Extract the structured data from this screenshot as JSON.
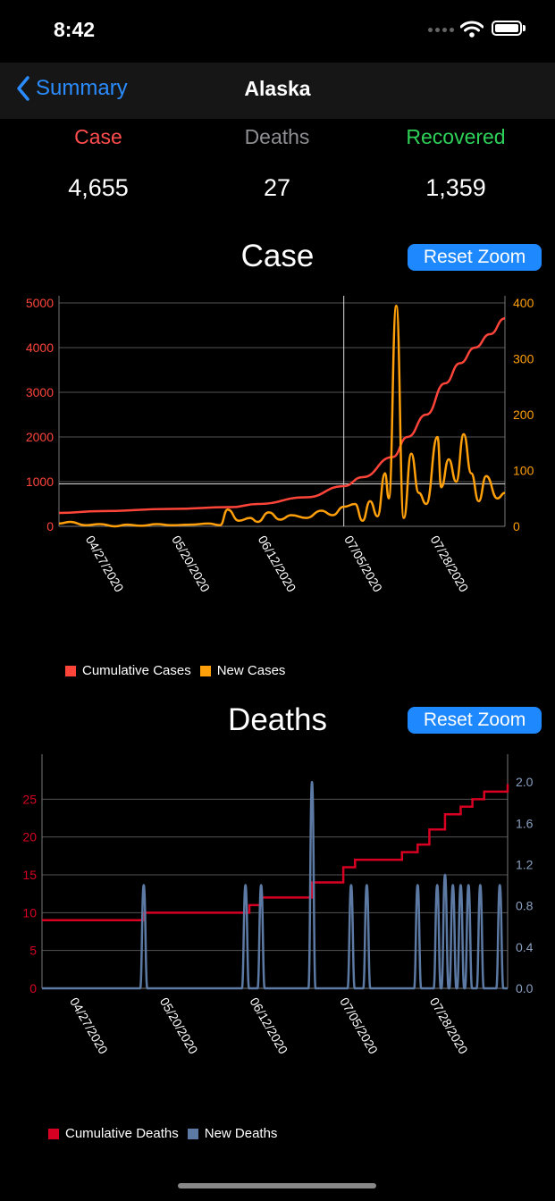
{
  "status_bar": {
    "time": "8:42"
  },
  "nav": {
    "back_label": "Summary",
    "title": "Alaska"
  },
  "stats": [
    {
      "label": "Case",
      "value": "4,655",
      "color": "#ff4d4d"
    },
    {
      "label": "Deaths",
      "value": "27",
      "color": "#8e8e93"
    },
    {
      "label": "Recovered",
      "value": "1,359",
      "color": "#2ed158"
    }
  ],
  "charts": [
    {
      "title": "Case",
      "reset_label": "Reset Zoom",
      "left_ticks": [
        "0",
        "1000",
        "2000",
        "3000",
        "4000",
        "5000"
      ],
      "right_ticks": [
        "0",
        "100",
        "200",
        "300",
        "400"
      ],
      "x_ticks": [
        "04/27/2020",
        "05/20/2020",
        "06/12/2020",
        "07/05/2020",
        "07/28/2020"
      ],
      "legend": [
        {
          "label": "Cumulative Cases",
          "color": "#ff453a"
        },
        {
          "label": "New Cases",
          "color": "#ff9f0a"
        }
      ]
    },
    {
      "title": "Deaths",
      "reset_label": "Reset Zoom",
      "left_ticks": [
        "0",
        "5",
        "10",
        "15",
        "20",
        "25"
      ],
      "right_ticks": [
        "0.0",
        "0.4",
        "0.8",
        "1.2",
        "1.6",
        "2.0"
      ],
      "x_ticks": [
        "04/27/2020",
        "05/20/2020",
        "06/12/2020",
        "07/05/2020",
        "07/28/2020"
      ],
      "legend": [
        {
          "label": "Cumulative Deaths",
          "color": "#d70022"
        },
        {
          "label": "New Deaths",
          "color": "#5c7aa3"
        }
      ]
    }
  ],
  "chart_data": [
    {
      "type": "line",
      "title": "Case",
      "x_range": [
        "04/20/2020",
        "08/17/2020"
      ],
      "series": [
        {
          "name": "Cumulative Cases",
          "axis": "left",
          "points": [
            [
              "04/20/2020",
              300
            ],
            [
              "05/01/2020",
              340
            ],
            [
              "05/20/2020",
              390
            ],
            [
              "06/05/2020",
              430
            ],
            [
              "06/12/2020",
              500
            ],
            [
              "06/25/2020",
              650
            ],
            [
              "07/05/2020",
              900
            ],
            [
              "07/10/2020",
              1100
            ],
            [
              "07/18/2020",
              1550
            ],
            [
              "07/22/2020",
              2000
            ],
            [
              "07/27/2020",
              2500
            ],
            [
              "08/01/2020",
              3200
            ],
            [
              "08/05/2020",
              3650
            ],
            [
              "08/09/2020",
              4000
            ],
            [
              "08/13/2020",
              4300
            ],
            [
              "08/17/2020",
              4655
            ]
          ]
        },
        {
          "name": "New Cases",
          "axis": "right",
          "points": [
            [
              "04/20/2020",
              5
            ],
            [
              "04/23/2020",
              8
            ],
            [
              "04/27/2020",
              2
            ],
            [
              "05/01/2020",
              4
            ],
            [
              "05/05/2020",
              0
            ],
            [
              "05/08/2020",
              3
            ],
            [
              "05/12/2020",
              1
            ],
            [
              "05/16/2020",
              4
            ],
            [
              "05/20/2020",
              2
            ],
            [
              "05/25/2020",
              3
            ],
            [
              "05/30/2020",
              5
            ],
            [
              "06/02/2020",
              2
            ],
            [
              "06/04/2020",
              30
            ],
            [
              "06/07/2020",
              10
            ],
            [
              "06/10/2020",
              15
            ],
            [
              "06/12/2020",
              8
            ],
            [
              "06/15/2020",
              25
            ],
            [
              "06/18/2020",
              12
            ],
            [
              "06/21/2020",
              20
            ],
            [
              "06/25/2020",
              15
            ],
            [
              "06/29/2020",
              28
            ],
            [
              "07/02/2020",
              20
            ],
            [
              "07/05/2020",
              35
            ],
            [
              "07/08/2020",
              40
            ],
            [
              "07/10/2020",
              10
            ],
            [
              "07/12/2020",
              45
            ],
            [
              "07/14/2020",
              18
            ],
            [
              "07/16/2020",
              95
            ],
            [
              "07/17/2020",
              50
            ],
            [
              "07/19/2020",
              395
            ],
            [
              "07/21/2020",
              15
            ],
            [
              "07/23/2020",
              130
            ],
            [
              "07/25/2020",
              60
            ],
            [
              "07/27/2020",
              40
            ],
            [
              "07/30/2020",
              160
            ],
            [
              "07/31/2020",
              70
            ],
            [
              "08/02/2020",
              120
            ],
            [
              "08/04/2020",
              80
            ],
            [
              "08/06/2020",
              165
            ],
            [
              "08/08/2020",
              95
            ],
            [
              "08/10/2020",
              45
            ],
            [
              "08/12/2020",
              90
            ],
            [
              "08/15/2020",
              50
            ],
            [
              "08/17/2020",
              60
            ]
          ]
        }
      ],
      "left_axis": {
        "min": 0,
        "max": 5000
      },
      "right_axis": {
        "min": 0,
        "max": 400
      },
      "grid": true,
      "legend_position": "bottom-left"
    },
    {
      "type": "line",
      "title": "Deaths",
      "x_range": [
        "04/20/2020",
        "08/17/2020"
      ],
      "series": [
        {
          "name": "Cumulative Deaths",
          "axis": "left",
          "points": [
            [
              "04/20/2020",
              9
            ],
            [
              "05/15/2020",
              9
            ],
            [
              "05/16/2020",
              10
            ],
            [
              "06/10/2020",
              10
            ],
            [
              "06/12/2020",
              11
            ],
            [
              "06/15/2020",
              12
            ],
            [
              "06/27/2020",
              12
            ],
            [
              "06/28/2020",
              14
            ],
            [
              "07/05/2020",
              14
            ],
            [
              "07/06/2020",
              16
            ],
            [
              "07/09/2020",
              17
            ],
            [
              "07/19/2020",
              17
            ],
            [
              "07/21/2020",
              18
            ],
            [
              "07/25/2020",
              19
            ],
            [
              "07/28/2020",
              21
            ],
            [
              "08/01/2020",
              23
            ],
            [
              "08/05/2020",
              24
            ],
            [
              "08/08/2020",
              25
            ],
            [
              "08/11/2020",
              26
            ],
            [
              "08/16/2020",
              26
            ],
            [
              "08/17/2020",
              27
            ]
          ]
        },
        {
          "name": "New Deaths",
          "axis": "right",
          "spikes": [
            [
              "05/16/2020",
              1
            ],
            [
              "06/11/2020",
              1
            ],
            [
              "06/15/2020",
              1
            ],
            [
              "06/28/2020",
              2
            ],
            [
              "07/08/2020",
              1
            ],
            [
              "07/12/2020",
              1
            ],
            [
              "07/25/2020",
              1
            ],
            [
              "07/30/2020",
              1
            ],
            [
              "08/01/2020",
              1.1
            ],
            [
              "08/03/2020",
              1
            ],
            [
              "08/05/2020",
              1
            ],
            [
              "08/07/2020",
              1
            ],
            [
              "08/10/2020",
              1
            ],
            [
              "08/15/2020",
              1
            ]
          ]
        }
      ],
      "left_axis": {
        "min": 0,
        "max": 30
      },
      "right_axis": {
        "min": 0,
        "max": 2.2
      },
      "grid": true,
      "legend_position": "bottom-left"
    }
  ]
}
